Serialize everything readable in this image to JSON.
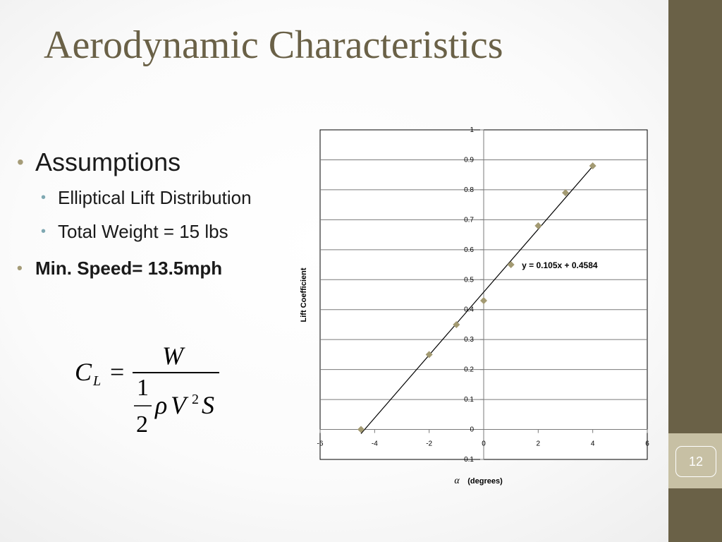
{
  "slide": {
    "title": "Aerodynamic Characteristics",
    "page_number": "12",
    "accent_color": "#6a6147",
    "sidebar_color": "#6a6147",
    "page_box_color": "#c7c0a4"
  },
  "bullets": [
    {
      "text": "Assumptions",
      "level": 1,
      "bold": false
    },
    {
      "text": "Elliptical Lift Distribution",
      "level": 2,
      "bold": false
    },
    {
      "text": "Total Weight = 15 lbs",
      "level": 2,
      "bold": false
    },
    {
      "text": "Min. Speed= 13.5mph",
      "level": 1,
      "bold": true
    }
  ],
  "formula": {
    "lhs": "C",
    "lhs_sub": "L",
    "equals": "=",
    "numerator": "W",
    "half_num": "1",
    "half_den": "2",
    "rho": "ρ",
    "v": "V",
    "v_exp": "2",
    "s": "S"
  },
  "chart_data": {
    "type": "scatter",
    "title": "",
    "xlabel_symbol": "α",
    "xlabel": "(degrees)",
    "ylabel": "Lift Coefficient",
    "xlim": [
      -6,
      6
    ],
    "ylim": [
      -0.1,
      1
    ],
    "x_ticks": [
      -6,
      -4,
      -2,
      0,
      2,
      4,
      6
    ],
    "y_ticks": [
      -0.1,
      0,
      0.1,
      0.2,
      0.3,
      0.4,
      0.5,
      0.6,
      0.7,
      0.8,
      0.9,
      1
    ],
    "grid": true,
    "marker_color": "#a39a72",
    "series": [
      {
        "x": [
          -4.5,
          -2,
          -1,
          0,
          1,
          2,
          3,
          4
        ],
        "y": [
          0,
          0.25,
          0.35,
          0.43,
          0.55,
          0.68,
          0.79,
          0.88
        ]
      }
    ],
    "trendline": {
      "slope": 0.105,
      "intercept": 0.4584,
      "label": "y = 0.105x + 0.4584"
    }
  }
}
